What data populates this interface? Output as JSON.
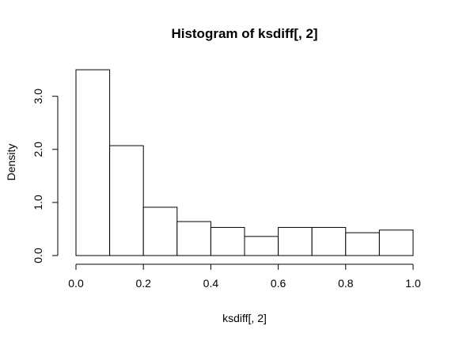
{
  "chart_data": {
    "type": "bar",
    "title": "Histogram of ksdiff[, 2]",
    "xlabel": "ksdiff[, 2]",
    "ylabel": "Density",
    "bins": [
      {
        "x0": 0.0,
        "x1": 0.1,
        "density": 3.5
      },
      {
        "x0": 0.1,
        "x1": 0.2,
        "density": 2.07
      },
      {
        "x0": 0.2,
        "x1": 0.3,
        "density": 0.91
      },
      {
        "x0": 0.3,
        "x1": 0.4,
        "density": 0.64
      },
      {
        "x0": 0.4,
        "x1": 0.5,
        "density": 0.53
      },
      {
        "x0": 0.5,
        "x1": 0.6,
        "density": 0.36
      },
      {
        "x0": 0.6,
        "x1": 0.7,
        "density": 0.53
      },
      {
        "x0": 0.7,
        "x1": 0.8,
        "density": 0.53
      },
      {
        "x0": 0.8,
        "x1": 0.9,
        "density": 0.43
      },
      {
        "x0": 0.9,
        "x1": 1.0,
        "density": 0.48
      }
    ],
    "xticks": [
      "0.0",
      "0.2",
      "0.4",
      "0.6",
      "0.8",
      "1.0"
    ],
    "yticks": [
      "0.0",
      "1.0",
      "2.0",
      "3.0"
    ],
    "xlim": [
      0.0,
      1.0
    ],
    "ylim": [
      0.0,
      3.5
    ],
    "grid": false,
    "colors": {
      "bar_fill": "#ffffff",
      "bar_stroke": "#000000"
    }
  }
}
